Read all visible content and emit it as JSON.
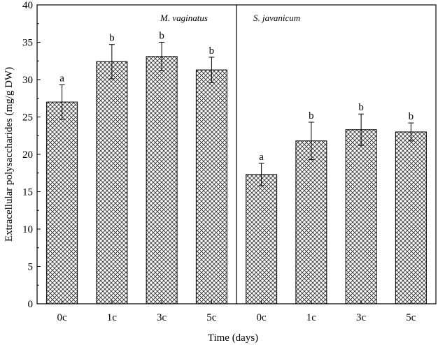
{
  "chart_data": {
    "type": "bar",
    "xlabel": "Time (days)",
    "ylabel": "Extracellular polysaccharides (mg/g DW)",
    "ylim": [
      0,
      40
    ],
    "yticks": [
      0,
      5,
      10,
      15,
      20,
      25,
      30,
      35,
      40
    ],
    "grid": false,
    "panels": [
      {
        "name": "M. vaginatus",
        "categories": [
          "0c",
          "1c",
          "3c",
          "5c"
        ],
        "values": [
          27.0,
          32.4,
          33.1,
          31.3
        ],
        "errors": [
          2.3,
          2.3,
          1.9,
          1.7
        ],
        "labels": [
          "a",
          "b",
          "b",
          "b"
        ]
      },
      {
        "name": "S. javanicum",
        "categories": [
          "0c",
          "1c",
          "3c",
          "5c"
        ],
        "values": [
          17.3,
          21.8,
          23.3,
          23.0
        ],
        "errors": [
          1.5,
          2.5,
          2.1,
          1.2
        ],
        "labels": [
          "a",
          "b",
          "b",
          "b"
        ]
      }
    ]
  }
}
